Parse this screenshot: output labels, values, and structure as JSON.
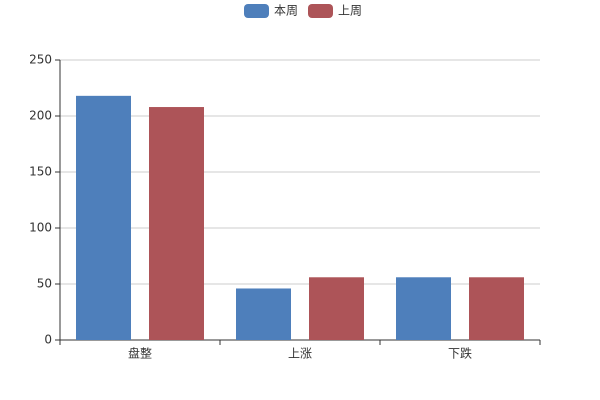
{
  "chart_data": {
    "type": "bar",
    "categories": [
      "盘整",
      "上涨",
      "下跌"
    ],
    "series": [
      {
        "name": "本周",
        "color": "#4e7fbb",
        "values": [
          218,
          46,
          56
        ]
      },
      {
        "name": "上周",
        "color": "#ad5458",
        "values": [
          208,
          56,
          56
        ]
      }
    ],
    "ylim": [
      0,
      250
    ],
    "yticks": [
      0,
      50,
      100,
      150,
      200,
      250
    ],
    "grid": true,
    "legend": "top"
  }
}
